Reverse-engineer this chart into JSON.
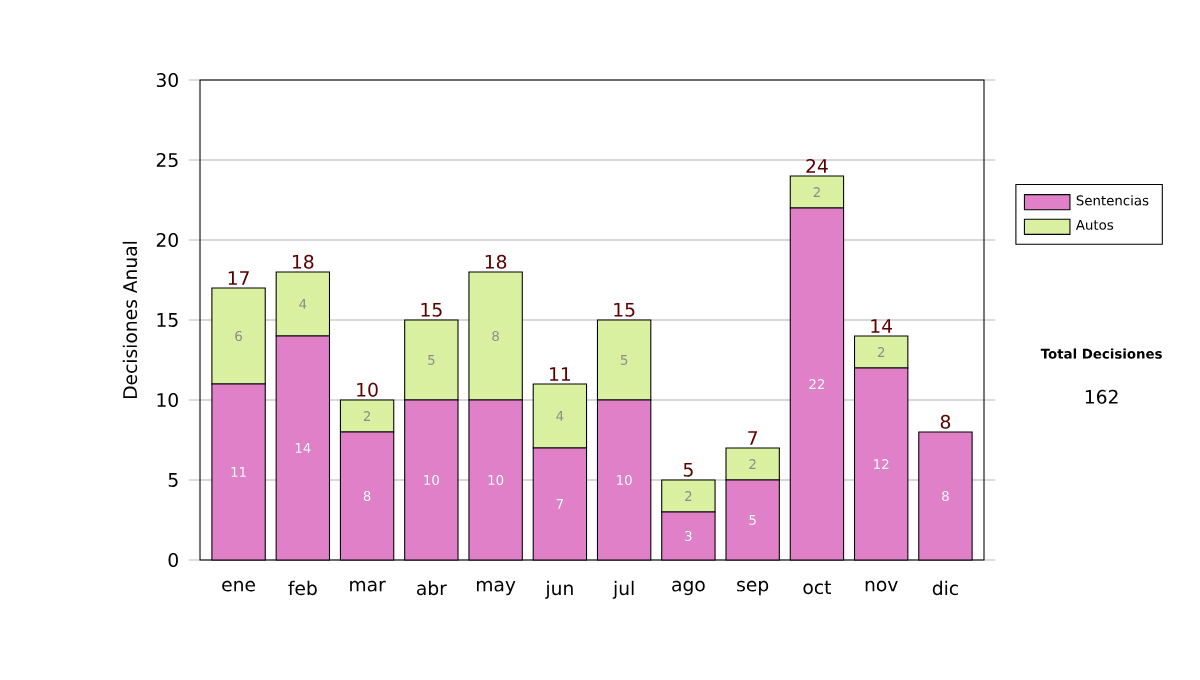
{
  "chart_data": {
    "type": "bar",
    "stacked": true,
    "ylabel": "Decisiones Anual",
    "categories": [
      "ene",
      "feb",
      "mar",
      "abr",
      "may",
      "jun",
      "jul",
      "ago",
      "sep",
      "oct",
      "nov",
      "dic"
    ],
    "series": [
      {
        "name": "Sentencias",
        "color": "#e080c8",
        "values": [
          11,
          14,
          8,
          10,
          10,
          7,
          10,
          3,
          5,
          22,
          12,
          8
        ],
        "value_labels": [
          "11",
          "14",
          "8",
          "10",
          "10",
          "7",
          "10",
          "3",
          "5",
          "22",
          "12",
          "8"
        ]
      },
      {
        "name": "Autos",
        "color": "#d8f0a0",
        "values": [
          6,
          4,
          2,
          5,
          8,
          4,
          5,
          2,
          2,
          2,
          2,
          null
        ],
        "value_labels": [
          "6",
          "4",
          "2",
          "5",
          "8",
          "4",
          "5",
          "2",
          "2",
          "2",
          "2",
          null
        ]
      }
    ],
    "totals": [
      "17",
      "18",
      "10",
      "15",
      "18",
      "11",
      "15",
      "5",
      "7",
      "24",
      "14",
      "8"
    ],
    "ylim": [
      0,
      30
    ],
    "yticks": [
      0,
      5,
      10,
      15,
      20,
      25,
      30
    ],
    "grid": "y",
    "legend": "right",
    "annotations": [
      "Total Decisiones",
      "162"
    ]
  }
}
